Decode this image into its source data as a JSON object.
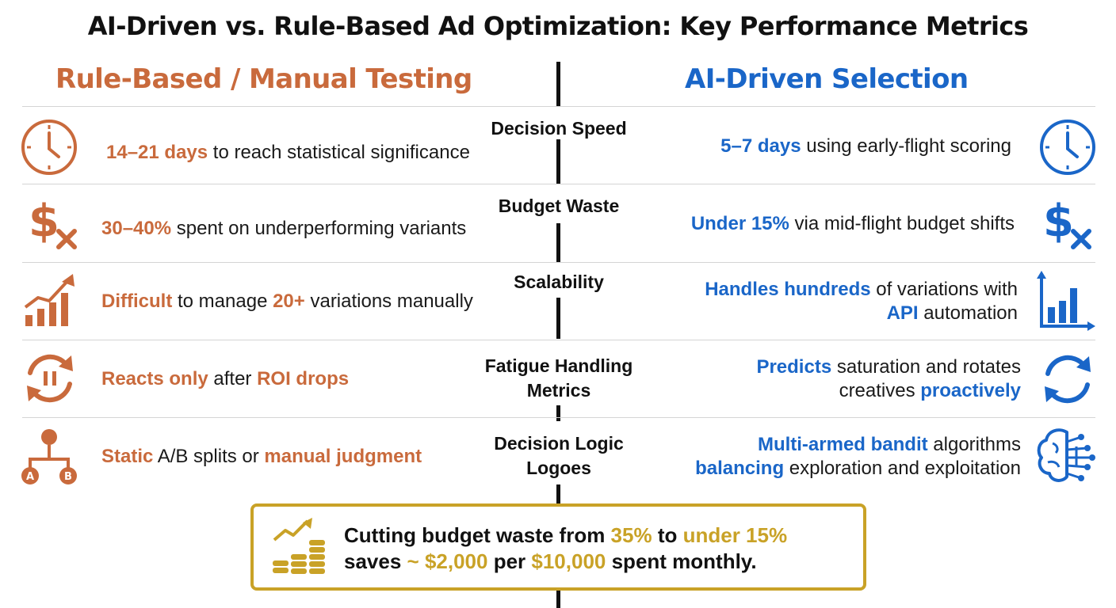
{
  "title": "AI-Driven vs. Rule-Based Ad Optimization: Key Performance Metrics",
  "columns": {
    "left": "Rule-Based / Manual Testing",
    "right": "AI-Driven Selection"
  },
  "colors": {
    "rule_based": "#c96a3c",
    "ai_driven": "#1a66c8",
    "callout": "#c9a227"
  },
  "rows": [
    {
      "metric": [
        "Decision Speed"
      ],
      "left_icon": "clock-icon",
      "right_icon": "clock-icon",
      "left": {
        "hl": "14–21 days",
        "rest": " to reach statistical significance"
      },
      "right": {
        "hl": "5–7 days",
        "rest": " using early-flight scoring"
      }
    },
    {
      "metric": [
        "Budget Waste"
      ],
      "left_icon": "dollar-x-icon",
      "right_icon": "dollar-x-icon",
      "left": {
        "hl": "30–40%",
        "rest": " spent on underperforming variants"
      },
      "right": {
        "hl": "Under 15%",
        "rest": " via mid-flight budget shifts"
      }
    },
    {
      "metric": [
        "Scalability"
      ],
      "left_icon": "growth-chart-icon",
      "right_icon": "bar-chart-icon",
      "left": {
        "hl1": "Difficult",
        "mid": " to manage ",
        "hl2": "20+",
        "rest": " variations manually"
      },
      "right": {
        "hl1": "Handles hundreds",
        "mid": " of variations with",
        "hl2": "API",
        "rest": " automation"
      }
    },
    {
      "metric": [
        "Fatigue Handling",
        "Metrics"
      ],
      "left_icon": "refresh-pause-icon",
      "right_icon": "refresh-icon",
      "left": {
        "hl1": "Reacts only",
        "mid": " after ",
        "hl2": "ROI drops"
      },
      "right": {
        "hl1": "Predicts",
        "mid": " saturation and rotates",
        "line2": "creatives ",
        "hl2": "proactively"
      }
    },
    {
      "metric": [
        "Decision Logic",
        "Logoes"
      ],
      "left_icon": "ab-split-icon",
      "right_icon": "brain-network-icon",
      "left": {
        "hl1": "Static",
        "mid": " A/B splits or ",
        "hl2": "manual judgment"
      },
      "right": {
        "hl1": "Multi-armed bandit",
        "mid": " algorithms",
        "hl2": "balancing",
        "rest": " exploration and exploitation"
      }
    }
  ],
  "callout": {
    "icon": "coins-growth-icon",
    "line1_a": "Cutting budget waste from ",
    "line1_b": "35%",
    "line1_c": " to ",
    "line1_d": "under 15%",
    "line2_a": "saves ",
    "line2_b": "~ $2,000",
    "line2_c": " per ",
    "line2_d": "$10,000",
    "line2_e": " spent monthly."
  }
}
